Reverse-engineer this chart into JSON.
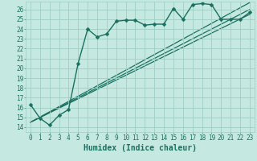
{
  "title": "",
  "xlabel": "Humidex (Indice chaleur)",
  "ylabel": "",
  "xlim": [
    -0.5,
    23.5
  ],
  "ylim": [
    13.5,
    26.8
  ],
  "bg_color": "#c5e8e0",
  "grid_color": "#9ecec4",
  "line_color": "#1a7060",
  "xticks": [
    0,
    1,
    2,
    3,
    4,
    5,
    6,
    7,
    8,
    9,
    10,
    11,
    12,
    13,
    14,
    15,
    16,
    17,
    18,
    19,
    20,
    21,
    22,
    23
  ],
  "yticks": [
    14,
    15,
    16,
    17,
    18,
    19,
    20,
    21,
    22,
    23,
    24,
    25,
    26
  ],
  "series_main": {
    "x": [
      0,
      1,
      2,
      3,
      4,
      5,
      6,
      7,
      8,
      9,
      10,
      11,
      12,
      13,
      14,
      15,
      16,
      17,
      18,
      19,
      20,
      21,
      22,
      23
    ],
    "y": [
      16.3,
      14.9,
      14.2,
      15.2,
      15.8,
      20.5,
      24.0,
      23.2,
      23.5,
      24.8,
      24.9,
      24.9,
      24.4,
      24.5,
      24.5,
      26.1,
      25.0,
      26.5,
      26.6,
      26.5,
      25.0,
      25.0,
      25.0,
      25.7
    ],
    "marker": "D",
    "markersize": 2.5,
    "linewidth": 1.0
  },
  "series_lines": [
    {
      "x": [
        0,
        23
      ],
      "y": [
        14.5,
        25.5
      ]
    },
    {
      "x": [
        0,
        23
      ],
      "y": [
        14.5,
        26.0
      ]
    },
    {
      "x": [
        0,
        23
      ],
      "y": [
        14.5,
        26.7
      ]
    }
  ],
  "xlabel_fontsize": 7,
  "tick_fontsize": 5.5
}
